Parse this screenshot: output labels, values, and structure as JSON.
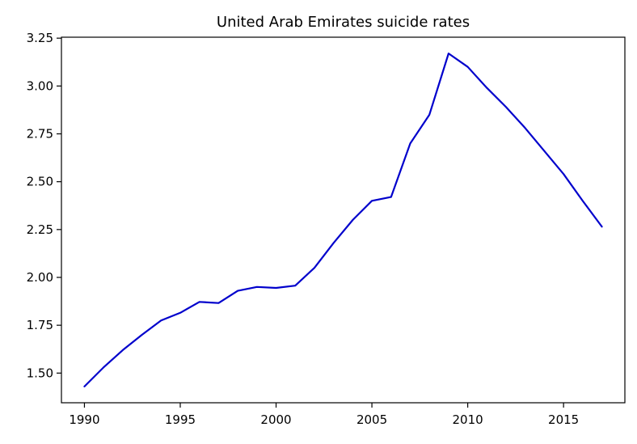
{
  "chart_data": {
    "type": "line",
    "title": "United Arab Emirates suicide rates",
    "xlabel": "",
    "ylabel": "",
    "xlim": [
      1988.8,
      2018.2
    ],
    "ylim": [
      1.345,
      3.255
    ],
    "xticks": [
      1990,
      1995,
      2000,
      2005,
      2010,
      2015
    ],
    "yticks": [
      1.5,
      1.75,
      2.0,
      2.25,
      2.5,
      2.75,
      3.0,
      3.25
    ],
    "ytick_labels": [
      "1.50",
      "1.75",
      "2.00",
      "2.25",
      "2.50",
      "2.75",
      "3.00",
      "3.25"
    ],
    "grid": false,
    "legend": "none",
    "series": [
      {
        "color": "#0000cc",
        "x": [
          1990,
          1991,
          1992,
          1993,
          1994,
          1995,
          1996,
          1997,
          1998,
          1999,
          2000,
          2001,
          2002,
          2003,
          2004,
          2005,
          2006,
          2007,
          2008,
          2009,
          2010,
          2011,
          2012,
          2013,
          2014,
          2015,
          2016,
          2017
        ],
        "y": [
          1.43,
          1.53,
          1.62,
          1.7,
          1.775,
          1.815,
          1.872,
          1.866,
          1.93,
          1.95,
          1.945,
          1.957,
          2.05,
          2.18,
          2.3,
          2.4,
          2.42,
          2.7,
          2.85,
          3.17,
          3.1,
          2.99,
          2.89,
          2.78,
          2.66,
          2.54,
          2.4,
          2.265
        ]
      }
    ]
  }
}
